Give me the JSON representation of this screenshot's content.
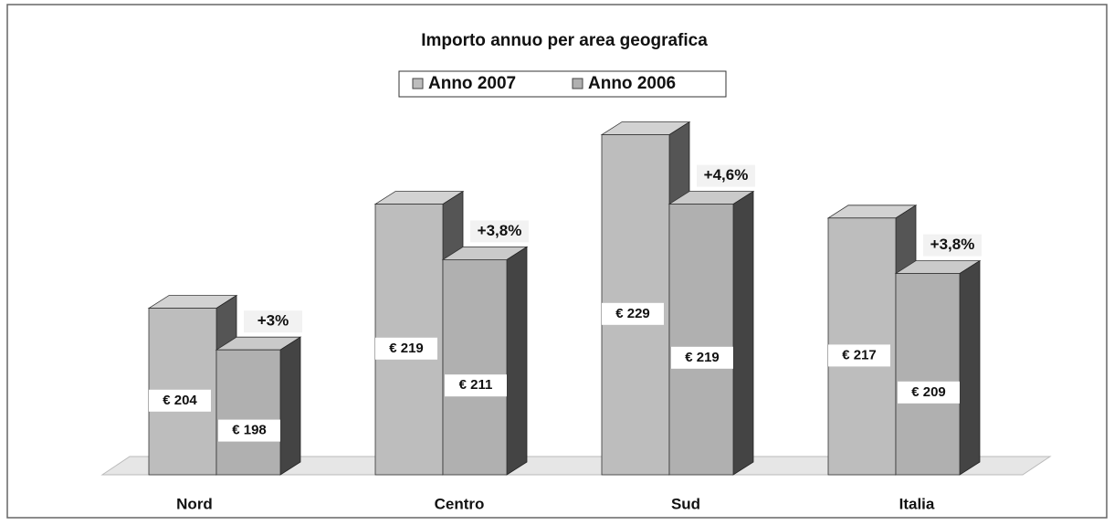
{
  "chart_data": {
    "type": "bar3d",
    "title": "Importo annuo per area geografica",
    "categories": [
      "Nord",
      "Centro",
      "Sud",
      "Italia"
    ],
    "series": [
      {
        "name": "Anno 2007",
        "color": "#bdbdbd",
        "values": [
          204,
          219,
          229,
          217
        ],
        "value_labels": [
          "€ 204",
          "€ 219",
          "€ 229",
          "€ 217"
        ]
      },
      {
        "name": "Anno 2006",
        "color": "#b0b0b0",
        "values": [
          198,
          211,
          219,
          209
        ],
        "value_labels": [
          "€ 198",
          "€ 211",
          "€ 219",
          "€ 209"
        ]
      }
    ],
    "annotations": [
      "+3%",
      "+3,8%",
      "+4,6%",
      "+3,8%"
    ],
    "ylim": [
      180,
      240
    ]
  }
}
